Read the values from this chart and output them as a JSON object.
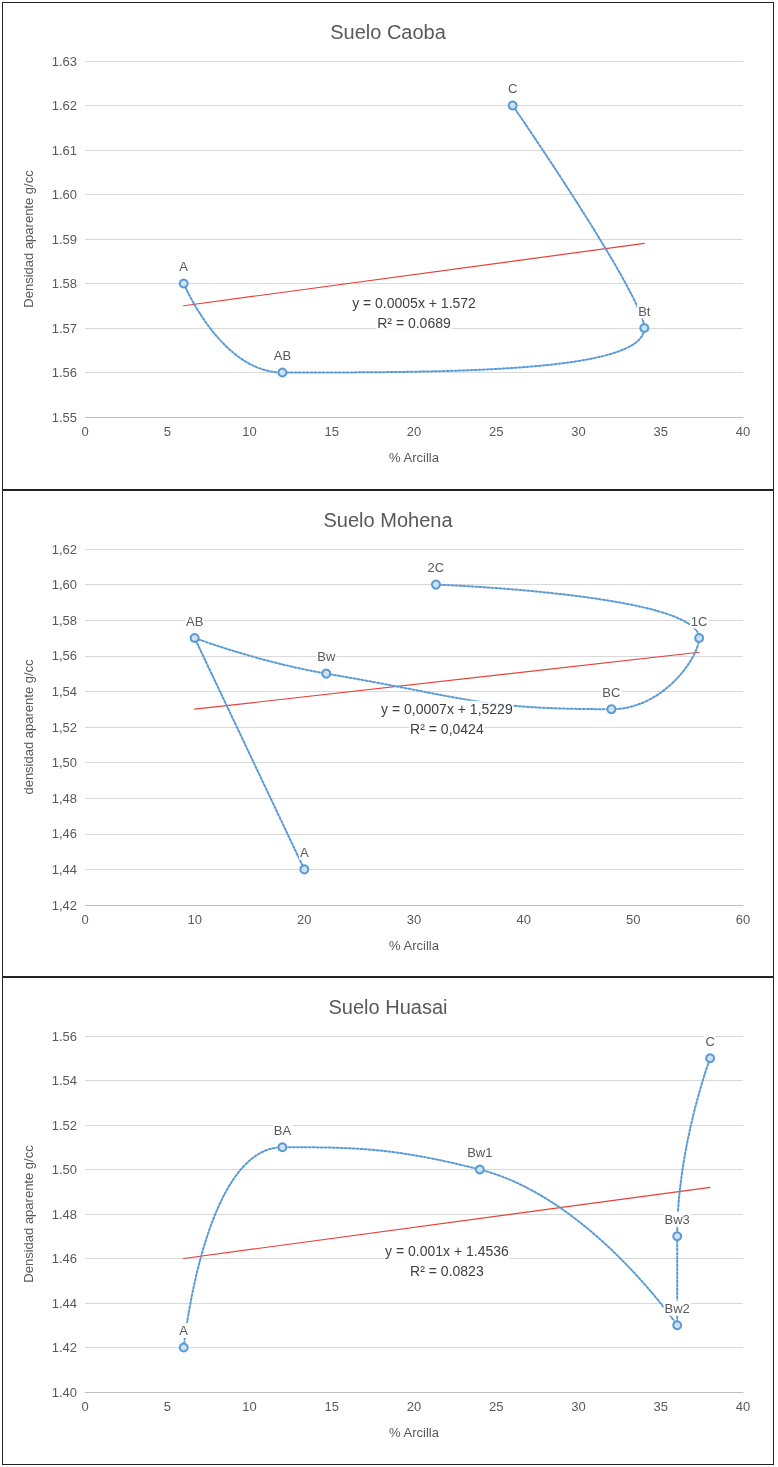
{
  "chart_data": [
    {
      "type": "line",
      "title": "Suelo Caoba",
      "xlabel": "% Arcilla",
      "ylabel": "Densidad aparente g/cc",
      "xlim": [
        0,
        40
      ],
      "xticks": [
        0,
        5,
        10,
        15,
        20,
        25,
        30,
        35,
        40
      ],
      "ylim": [
        1.55,
        1.63
      ],
      "yticks": [
        {
          "value": 1.55,
          "label": "1.55"
        },
        {
          "value": 1.56,
          "label": "1.56"
        },
        {
          "value": 1.57,
          "label": "1.57"
        },
        {
          "value": 1.58,
          "label": "1.58"
        },
        {
          "value": 1.59,
          "label": "1.59"
        },
        {
          "value": 1.6,
          "label": "1.60"
        },
        {
          "value": 1.61,
          "label": "1.61"
        },
        {
          "value": 1.62,
          "label": "1.62"
        },
        {
          "value": 1.63,
          "label": "1.63"
        }
      ],
      "grid": "y",
      "series": [
        {
          "color": "#5b9bd5",
          "x": [
            6,
            12,
            34,
            26
          ],
          "values": [
            1.58,
            1.56,
            1.57,
            1.62
          ],
          "line_style": "dotted",
          "marker": "circle"
        },
        {
          "color": "#e8403a",
          "x": [
            6,
            34
          ],
          "values": [
            1.575,
            1.589
          ],
          "line_style": "solid",
          "marker": "none"
        }
      ],
      "annotations": [
        {
          "text": "A",
          "x": 6,
          "y": 1.58
        },
        {
          "text": "AB",
          "x": 12,
          "y": 1.56
        },
        {
          "text": "Bt",
          "x": 34,
          "y": 1.57
        },
        {
          "text": "C",
          "x": 26,
          "y": 1.62
        },
        "y = 0.0005x + 1.572",
        "R² = 0.0689"
      ]
    },
    {
      "type": "line",
      "title": "Suelo Mohena",
      "xlabel": "% Arcilla",
      "ylabel": "densidad aparente g/cc",
      "xlim": [
        0,
        60
      ],
      "xticks": [
        0,
        10,
        20,
        30,
        40,
        50,
        60
      ],
      "ylim": [
        1.42,
        1.62
      ],
      "yticks": [
        {
          "value": 1.42,
          "label": "1,42"
        },
        {
          "value": 1.44,
          "label": "1,44"
        },
        {
          "value": 1.46,
          "label": "1,46"
        },
        {
          "value": 1.48,
          "label": "1,48"
        },
        {
          "value": 1.5,
          "label": "1,50"
        },
        {
          "value": 1.52,
          "label": "1,52"
        },
        {
          "value": 1.54,
          "label": "1,54"
        },
        {
          "value": 1.56,
          "label": "1,56"
        },
        {
          "value": 1.58,
          "label": "1,58"
        },
        {
          "value": 1.6,
          "label": "1,60"
        },
        {
          "value": 1.62,
          "label": "1,62"
        }
      ],
      "grid": "y",
      "series": [
        {
          "color": "#5b9bd5",
          "x": [
            20,
            10,
            22,
            48,
            56,
            32
          ],
          "values": [
            1.44,
            1.57,
            1.55,
            1.53,
            1.57,
            1.6
          ],
          "line_style": "dotted",
          "marker": "circle"
        },
        {
          "color": "#e8403a",
          "x": [
            10,
            56
          ],
          "values": [
            1.53,
            1.562
          ],
          "line_style": "solid",
          "marker": "none"
        }
      ],
      "annotations": [
        {
          "text": "A",
          "x": 20,
          "y": 1.44
        },
        {
          "text": "AB",
          "x": 10,
          "y": 1.57
        },
        {
          "text": "Bw",
          "x": 22,
          "y": 1.55
        },
        {
          "text": "BC",
          "x": 48,
          "y": 1.53
        },
        {
          "text": "1C",
          "x": 56,
          "y": 1.57
        },
        {
          "text": "2C",
          "x": 32,
          "y": 1.6
        },
        "y = 0,0007x + 1,5229",
        "R² = 0,0424"
      ]
    },
    {
      "type": "line",
      "title": "Suelo Huasai",
      "xlabel": "% Arcilla",
      "ylabel": "Densidad aparente g/cc",
      "xlim": [
        0,
        40
      ],
      "xticks": [
        0,
        5,
        10,
        15,
        20,
        25,
        30,
        35,
        40
      ],
      "ylim": [
        1.4,
        1.56
      ],
      "yticks": [
        {
          "value": 1.4,
          "label": "1.40"
        },
        {
          "value": 1.42,
          "label": "1.42"
        },
        {
          "value": 1.44,
          "label": "1.44"
        },
        {
          "value": 1.46,
          "label": "1.46"
        },
        {
          "value": 1.48,
          "label": "1.48"
        },
        {
          "value": 1.5,
          "label": "1.50"
        },
        {
          "value": 1.52,
          "label": "1.52"
        },
        {
          "value": 1.54,
          "label": "1.54"
        },
        {
          "value": 1.56,
          "label": "1.56"
        }
      ],
      "grid": "y",
      "series": [
        {
          "color": "#5b9bd5",
          "x": [
            6,
            12,
            24,
            36,
            36,
            38
          ],
          "values": [
            1.42,
            1.51,
            1.5,
            1.43,
            1.47,
            1.55
          ],
          "line_style": "dotted",
          "marker": "circle"
        },
        {
          "color": "#e8403a",
          "x": [
            6,
            38
          ],
          "values": [
            1.46,
            1.492
          ],
          "line_style": "solid",
          "marker": "none"
        }
      ],
      "annotations": [
        {
          "text": "A",
          "x": 6,
          "y": 1.42
        },
        {
          "text": "BA",
          "x": 12,
          "y": 1.51
        },
        {
          "text": "Bw1",
          "x": 24,
          "y": 1.5
        },
        {
          "text": "Bw2",
          "x": 36,
          "y": 1.43
        },
        {
          "text": "Bw3",
          "x": 36,
          "y": 1.47
        },
        {
          "text": "C",
          "x": 38,
          "y": 1.55
        },
        "y = 0.001x + 1.4536",
        "R² = 0.0823"
      ]
    }
  ]
}
